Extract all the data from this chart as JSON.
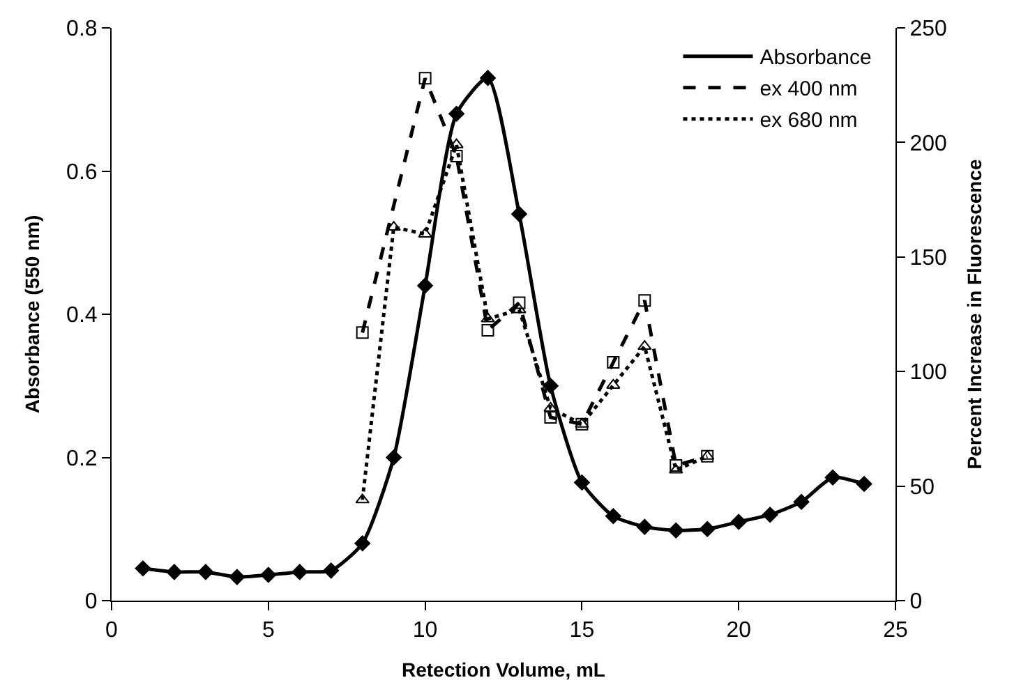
{
  "chart_data": {
    "type": "line",
    "xlabel": "Retection Volume, mL",
    "ylabel": "Absorbance (550 nm)",
    "y2label": "Percent Increase in Fluorescence",
    "xlim": [
      0,
      25
    ],
    "xticks": [
      0,
      5,
      10,
      15,
      20,
      25
    ],
    "ylim": [
      0,
      0.8
    ],
    "yticks": [
      0,
      0.2,
      0.4,
      0.6,
      0.8
    ],
    "y2lim": [
      0,
      250
    ],
    "y2ticks": [
      0,
      50,
      100,
      150,
      200,
      250
    ],
    "grid": false,
    "legend": "top right",
    "series": [
      {
        "name": "Absorbance",
        "color": "#000000",
        "line_style": "solid",
        "marker": "diamond",
        "x": [
          1,
          2,
          3,
          4,
          5,
          6,
          7,
          8,
          9,
          10,
          11,
          12,
          13,
          14,
          15,
          16,
          17,
          18,
          19,
          20,
          21,
          22,
          23,
          24
        ],
        "values": [
          0.045,
          0.04,
          0.04,
          0.033,
          0.036,
          0.04,
          0.042,
          0.08,
          0.2,
          0.44,
          0.68,
          0.73,
          0.54,
          0.3,
          0.165,
          0.118,
          0.103,
          0.098,
          0.1,
          0.11,
          0.12,
          0.138,
          0.172,
          0.163
        ]
      },
      {
        "name": "ex 400 nm",
        "color": "#000000",
        "line_style": "dashed",
        "marker": "square",
        "axis": "y2",
        "x": [
          8,
          10,
          11,
          12,
          13,
          14,
          15,
          16,
          17,
          18,
          19
        ],
        "values": [
          117,
          228,
          194,
          118,
          130,
          80,
          77,
          104,
          131,
          59,
          63
        ]
      },
      {
        "name": "ex 680 nm",
        "color": "#000000",
        "line_style": "dotted",
        "marker": "triangle",
        "axis": "y2",
        "x": [
          8,
          9,
          10,
          11,
          12,
          13,
          14,
          15,
          16,
          17,
          18,
          19
        ],
        "values": [
          44,
          163,
          160,
          199,
          123,
          127,
          84,
          77,
          94,
          111,
          57,
          63
        ]
      }
    ]
  }
}
